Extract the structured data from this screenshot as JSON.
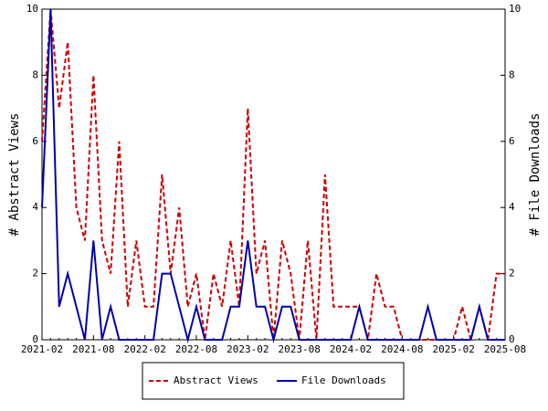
{
  "chart_data": {
    "type": "line",
    "categories": [
      "2021-02",
      null,
      null,
      null,
      null,
      null,
      "2021-08",
      null,
      null,
      null,
      null,
      null,
      "2022-02",
      null,
      null,
      null,
      null,
      null,
      "2022-08",
      null,
      null,
      null,
      null,
      null,
      "2023-02",
      null,
      null,
      null,
      null,
      null,
      "2023-08",
      null,
      null,
      null,
      null,
      null,
      "2024-02",
      null,
      null,
      null,
      null,
      null,
      "2024-08",
      null,
      null,
      null,
      null,
      null,
      "2025-02",
      null,
      null,
      null,
      null,
      null,
      "2025-08"
    ],
    "series": [
      {
        "name": "Abstract Views",
        "color": "#cc0000",
        "axis": "y",
        "dashed": true,
        "values": [
          6,
          10,
          7,
          9,
          4,
          3,
          8,
          3,
          2,
          6,
          1,
          3,
          1,
          1,
          5,
          2,
          4,
          1,
          2,
          0,
          2,
          1,
          3,
          1,
          7,
          2,
          3,
          0,
          3,
          2,
          0,
          3,
          0,
          5,
          1,
          1,
          1,
          1,
          0,
          2,
          1,
          1,
          0,
          0,
          0,
          0,
          0,
          0,
          0,
          1,
          0,
          1,
          0,
          2,
          2
        ]
      },
      {
        "name": "File Downloads",
        "color": "#0000aa",
        "axis": "y2",
        "dashed": false,
        "values": [
          4,
          10,
          1,
          2,
          1,
          0,
          3,
          0,
          1,
          0,
          0,
          0,
          0,
          0,
          2,
          2,
          1,
          0,
          1,
          0,
          0,
          0,
          1,
          1,
          3,
          1,
          1,
          0,
          1,
          1,
          0,
          0,
          0,
          0,
          0,
          0,
          0,
          1,
          0,
          0,
          0,
          0,
          0,
          0,
          0,
          1,
          0,
          0,
          0,
          0,
          0,
          1,
          0,
          0,
          0
        ]
      }
    ],
    "ylabel": "# Abstract Views",
    "y2label": "# File Downloads",
    "ylim": [
      0,
      10
    ],
    "yticks": [
      0,
      2,
      4,
      6,
      8,
      10
    ],
    "y2lim": [
      0,
      10
    ],
    "y2ticks": [
      0,
      2,
      4,
      6,
      8,
      10
    ],
    "legend": "bottom"
  }
}
